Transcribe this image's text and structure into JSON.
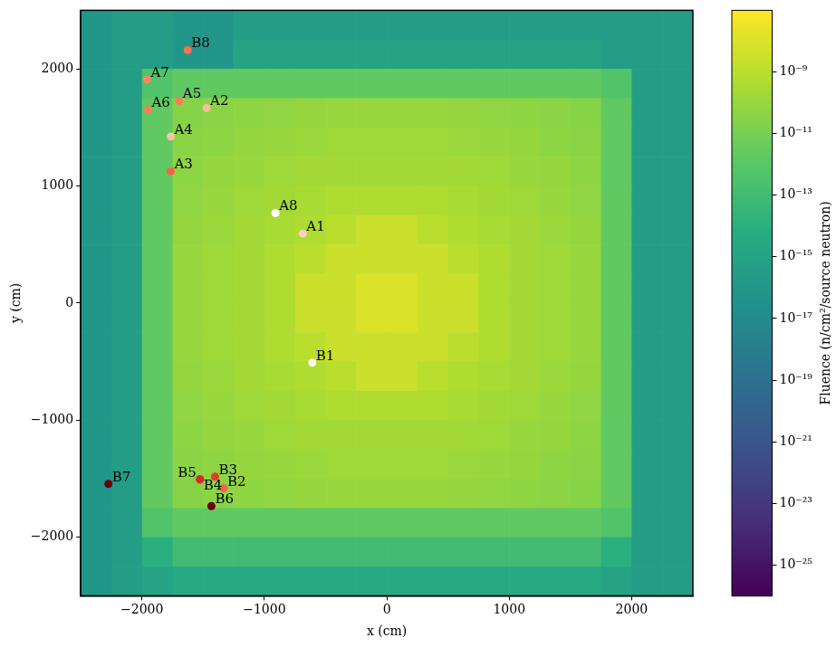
{
  "chart_data": {
    "type": "scatter",
    "x_label": "x (cm)",
    "y_label": "y (cm)",
    "xlim": [
      -2500,
      2500
    ],
    "ylim": [
      -2500,
      2500
    ],
    "xticks": [
      {
        "value": -2000,
        "label": "−2000"
      },
      {
        "value": -1000,
        "label": "−1000"
      },
      0,
      1000,
      2000
    ],
    "yticks": [
      {
        "value": -2000,
        "label": "−2000"
      },
      {
        "value": -1000,
        "label": "−1000"
      },
      0,
      1000,
      2000
    ],
    "grid": false,
    "marker": "circle",
    "labels": [
      "A1",
      "A2",
      "A3",
      "A4",
      "A5",
      "A6",
      "A7",
      "A8",
      "B1",
      "B2",
      "B3",
      "B4",
      "B5",
      "B6",
      "B7",
      "B8"
    ],
    "x": [
      -686,
      -1472,
      -1765,
      -1765,
      -1696,
      -1950,
      -1958,
      -909,
      -609,
      -1333,
      -1403,
      -1526,
      -1526,
      -1433,
      -2274,
      -1626
    ],
    "y": [
      593,
      1665,
      1125,
      1422,
      1726,
      1650,
      1909,
      768,
      -509,
      -1582,
      -1483,
      -1506,
      -1506,
      -1734,
      -1544,
      2160
    ],
    "colors": [
      "#fdd0bc",
      "#fcbba1",
      "#f96346",
      "#fcc1a8",
      "#fb7a5a",
      "#fb7c5c",
      "#fb8767",
      "#ffffff",
      "#fff3ee",
      "#f5634a",
      "#e33b2e",
      "#e0362a",
      "#d42c25",
      "#6b010e",
      "#67000d",
      "#fb7050"
    ],
    "heatmap": {
      "x_edges": [
        -2500,
        -2250,
        -2000,
        -1750,
        -1500,
        -1250,
        -1000,
        -750,
        -500,
        -250,
        0,
        250,
        500,
        750,
        1000,
        1250,
        1500,
        1750,
        2000,
        2250,
        2500
      ],
      "y_edges": [
        2500,
        2250,
        2000,
        1750,
        1500,
        1250,
        1000,
        750,
        500,
        250,
        0,
        -250,
        -500,
        -750,
        -1000,
        -1250,
        -1500,
        -1750,
        -2000,
        -2250,
        -2500
      ],
      "cells": [
        [
          1e-16,
          3e-16,
          3e-16,
          1e-16,
          1e-16,
          3e-16,
          3e-16,
          3e-16,
          3e-16,
          3e-16,
          3e-16,
          3e-16,
          3e-16,
          3e-16,
          3e-16,
          3e-16,
          3e-16,
          3e-16,
          3e-16,
          3e-16
        ],
        [
          1e-16,
          3e-16,
          3e-16,
          1e-16,
          1e-16,
          1e-15,
          1e-15,
          1e-15,
          1e-15,
          1e-15,
          1e-15,
          1e-15,
          1e-15,
          1e-15,
          1e-15,
          1e-15,
          1e-15,
          3e-16,
          3e-16,
          3e-16
        ],
        [
          1e-16,
          3e-16,
          5e-13,
          2e-12,
          2e-12,
          2e-12,
          2e-12,
          2e-12,
          2e-12,
          2e-12,
          2e-12,
          2e-12,
          2e-12,
          2e-12,
          2e-12,
          2e-12,
          2e-12,
          5e-13,
          3e-16,
          3e-16
        ],
        [
          1e-16,
          3e-16,
          2e-12,
          3e-11,
          4e-11,
          5e-11,
          6e-11,
          8e-11,
          1e-10,
          1e-10,
          1e-10,
          1e-10,
          8e-11,
          6e-11,
          5e-11,
          4e-11,
          3e-11,
          2e-12,
          3e-16,
          3e-16
        ],
        [
          1e-16,
          3e-16,
          2e-12,
          4e-11,
          5e-11,
          8e-11,
          1e-10,
          1.2e-10,
          1.5e-10,
          1.5e-10,
          1.5e-10,
          1.5e-10,
          1.2e-10,
          1e-10,
          8e-11,
          5e-11,
          4e-11,
          2e-12,
          3e-16,
          3e-16
        ],
        [
          1e-16,
          3e-16,
          2e-12,
          5e-11,
          8e-11,
          1e-10,
          1.5e-10,
          2e-10,
          2e-10,
          2e-10,
          2e-10,
          2e-10,
          2e-10,
          1.5e-10,
          1e-10,
          8e-11,
          5e-11,
          2e-12,
          3e-16,
          3e-16
        ],
        [
          1e-16,
          3e-16,
          2e-12,
          6e-11,
          1e-10,
          1.5e-10,
          2e-10,
          3e-10,
          5e-10,
          5e-10,
          5e-10,
          5e-10,
          3e-10,
          2e-10,
          1.5e-10,
          1e-10,
          6e-11,
          2e-12,
          3e-16,
          3e-16
        ],
        [
          1e-16,
          3e-16,
          2e-12,
          8e-11,
          1.2e-10,
          2e-10,
          3e-10,
          5e-10,
          1e-09,
          3e-09,
          3e-09,
          1e-09,
          5e-10,
          3e-10,
          2e-10,
          1.2e-10,
          8e-11,
          2e-12,
          3e-16,
          3e-16
        ],
        [
          1e-16,
          3e-16,
          2e-12,
          1e-10,
          1.5e-10,
          2e-10,
          5e-10,
          1e-09,
          3e-09,
          3e-09,
          3e-09,
          3e-09,
          1e-09,
          5e-10,
          2e-10,
          1.5e-10,
          1e-10,
          2e-12,
          3e-16,
          3e-16
        ],
        [
          1e-16,
          3e-16,
          2e-12,
          1e-10,
          1.5e-10,
          2e-10,
          5e-10,
          3e-09,
          3e-09,
          1e-08,
          1e-08,
          3e-09,
          3e-09,
          5e-10,
          2e-10,
          1.5e-10,
          1e-10,
          2e-12,
          3e-16,
          3e-16
        ],
        [
          1e-16,
          3e-16,
          2e-12,
          1e-10,
          1.5e-10,
          2e-10,
          5e-10,
          3e-09,
          3e-09,
          1e-08,
          1e-08,
          3e-09,
          3e-09,
          5e-10,
          2e-10,
          1.5e-10,
          1e-10,
          2e-12,
          3e-16,
          3e-16
        ],
        [
          1e-16,
          3e-16,
          2e-12,
          1e-10,
          1.5e-10,
          2e-10,
          5e-10,
          1e-09,
          3e-09,
          3e-09,
          3e-09,
          3e-09,
          1e-09,
          5e-10,
          2e-10,
          1.5e-10,
          1e-10,
          2e-12,
          3e-16,
          3e-16
        ],
        [
          1e-16,
          3e-16,
          2e-12,
          8e-11,
          1.2e-10,
          2e-10,
          3e-10,
          5e-10,
          1e-09,
          3e-09,
          3e-09,
          1e-09,
          5e-10,
          3e-10,
          2e-10,
          1.2e-10,
          8e-11,
          2e-12,
          3e-16,
          3e-16
        ],
        [
          1e-16,
          3e-16,
          2e-12,
          6e-11,
          1e-10,
          1.5e-10,
          2e-10,
          3e-10,
          5e-10,
          5e-10,
          5e-10,
          5e-10,
          3e-10,
          2e-10,
          1.5e-10,
          1e-10,
          6e-11,
          2e-12,
          3e-16,
          3e-16
        ],
        [
          1e-16,
          3e-16,
          2e-12,
          5e-11,
          8e-11,
          1e-10,
          1.5e-10,
          2e-10,
          2e-10,
          2e-10,
          2e-10,
          2e-10,
          2e-10,
          1.5e-10,
          1e-10,
          8e-11,
          5e-11,
          2e-12,
          3e-16,
          3e-16
        ],
        [
          1e-16,
          3e-16,
          2e-12,
          4e-11,
          5e-11,
          8e-11,
          1e-10,
          1.2e-10,
          1.5e-10,
          1.5e-10,
          1.5e-10,
          1.5e-10,
          1.2e-10,
          1e-10,
          8e-11,
          5e-11,
          4e-11,
          2e-12,
          3e-16,
          3e-16
        ],
        [
          1e-16,
          3e-16,
          2e-12,
          3e-11,
          4e-11,
          5e-11,
          6e-11,
          8e-11,
          1e-10,
          1e-10,
          1e-10,
          1e-10,
          8e-11,
          6e-11,
          5e-11,
          4e-11,
          3e-11,
          2e-12,
          3e-16,
          3e-16
        ],
        [
          1e-16,
          3e-16,
          5e-13,
          2e-12,
          2e-12,
          2e-12,
          2e-12,
          2e-12,
          2e-12,
          2e-12,
          2e-12,
          2e-12,
          2e-12,
          2e-12,
          2e-12,
          2e-12,
          2e-12,
          5e-13,
          3e-16,
          3e-16
        ],
        [
          1e-16,
          3e-16,
          1e-14,
          1e-13,
          1e-13,
          1e-13,
          1e-13,
          1e-13,
          1e-13,
          1e-13,
          1e-13,
          1e-13,
          1e-13,
          1e-13,
          1e-13,
          1e-13,
          1e-13,
          1e-14,
          3e-16,
          3e-16
        ],
        [
          1e-16,
          3e-16,
          1e-15,
          3e-15,
          3e-15,
          3e-15,
          3e-15,
          3e-15,
          3e-15,
          3e-15,
          3e-15,
          3e-15,
          3e-15,
          3e-15,
          3e-15,
          3e-15,
          3e-15,
          1e-15,
          3e-16,
          3e-16
        ]
      ],
      "colorbar": {
        "label": "Fluence (n/cm²/source neutron)",
        "log": true,
        "range": [
          1e-26,
          1e-07
        ],
        "ticks": [
          {
            "value": 1e-09,
            "label": "10⁻⁹"
          },
          {
            "value": 1e-11,
            "label": "10⁻¹¹"
          },
          {
            "value": 1e-13,
            "label": "10⁻¹³"
          },
          {
            "value": 1e-15,
            "label": "10⁻¹⁵"
          },
          {
            "value": 1e-17,
            "label": "10⁻¹⁷"
          },
          {
            "value": 1e-19,
            "label": "10⁻¹⁹"
          },
          {
            "value": 1e-21,
            "label": "10⁻²¹"
          },
          {
            "value": 1e-23,
            "label": "10⁻²³"
          },
          {
            "value": 1e-25,
            "label": "10⁻²⁵"
          }
        ]
      }
    }
  }
}
